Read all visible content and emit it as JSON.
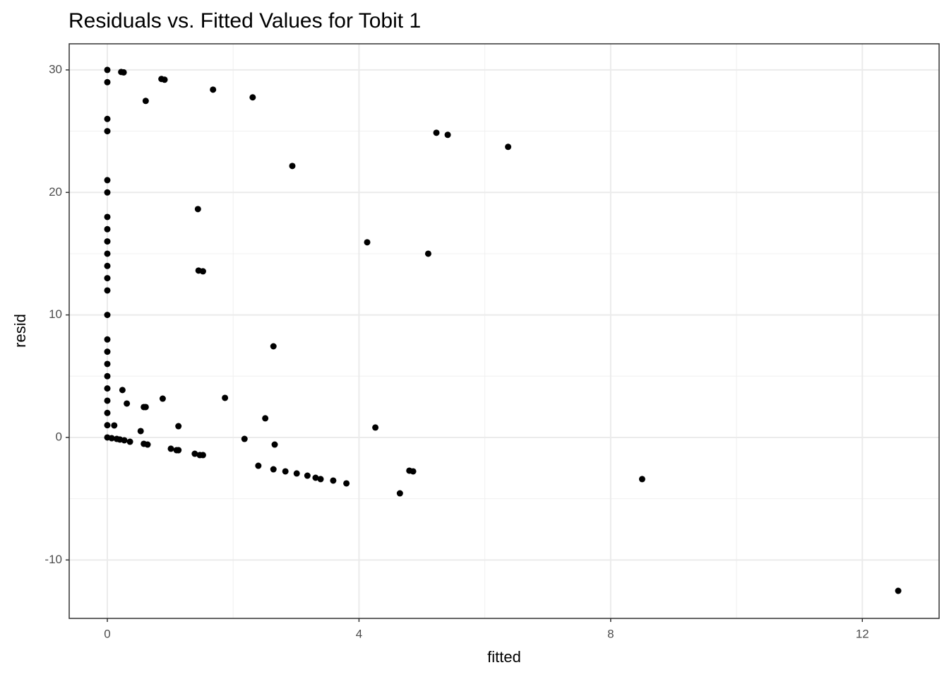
{
  "chart_data": {
    "type": "scatter",
    "title": "Residuals vs. Fitted Values for Tobit 1",
    "xlabel": "fitted",
    "ylabel": "resid",
    "x": [
      0,
      0,
      0,
      0,
      0,
      0,
      0,
      0,
      0,
      0,
      0,
      0,
      0,
      0,
      0,
      0,
      0,
      0,
      0,
      0,
      0,
      0,
      0,
      0.22,
      0.26,
      0.86,
      0.91,
      0.61,
      1.68,
      2.31,
      5.23,
      5.41,
      6.37,
      2.94,
      1.44,
      4.13,
      5.1,
      1.45,
      1.52,
      2.64,
      0.24,
      0.31,
      0.58,
      0.61,
      0.88,
      1.87,
      2.51,
      0.11,
      1.13,
      0.53,
      4.26,
      0.07,
      0.15,
      0.2,
      0.27,
      0.36,
      0.58,
      0.64,
      1.01,
      1.1,
      1.13,
      1.39,
      1.47,
      1.52,
      2.18,
      2.66,
      2.4,
      2.64,
      2.83,
      3.01,
      3.18,
      3.31,
      3.39,
      3.59,
      3.8,
      4.65,
      4.8,
      4.86,
      8.5,
      12.57
    ],
    "y": [
      30,
      29,
      26,
      25,
      21,
      20,
      18,
      17,
      16,
      15,
      14,
      13,
      12,
      10,
      8,
      7,
      6,
      5,
      4,
      3,
      2,
      1,
      0,
      29.83,
      29.8,
      29.26,
      29.2,
      27.47,
      28.39,
      27.76,
      24.87,
      24.7,
      23.72,
      22.16,
      18.64,
      15.93,
      15.0,
      13.62,
      13.56,
      7.44,
      3.87,
      2.77,
      2.48,
      2.48,
      3.17,
      3.23,
      1.56,
      0.98,
      0.92,
      0.52,
      0.81,
      -0.06,
      -0.12,
      -0.17,
      -0.23,
      -0.35,
      -0.52,
      -0.58,
      -0.92,
      -1.04,
      -1.04,
      -1.33,
      -1.44,
      -1.44,
      -0.12,
      -0.58,
      -2.31,
      -2.6,
      -2.77,
      -2.94,
      -3.12,
      -3.29,
      -3.4,
      -3.52,
      -3.75,
      -4.56,
      -2.71,
      -2.77,
      -3.4,
      -12.52
    ],
    "color": "#000000",
    "xlim": [
      -0.606,
      13.22
    ],
    "xticks": [
      0,
      4,
      8,
      12
    ],
    "ylim": [
      -14.77,
      32.13
    ],
    "yticks": [
      -10,
      0,
      10,
      20,
      30
    ],
    "grid": true,
    "minor_grid": true
  }
}
